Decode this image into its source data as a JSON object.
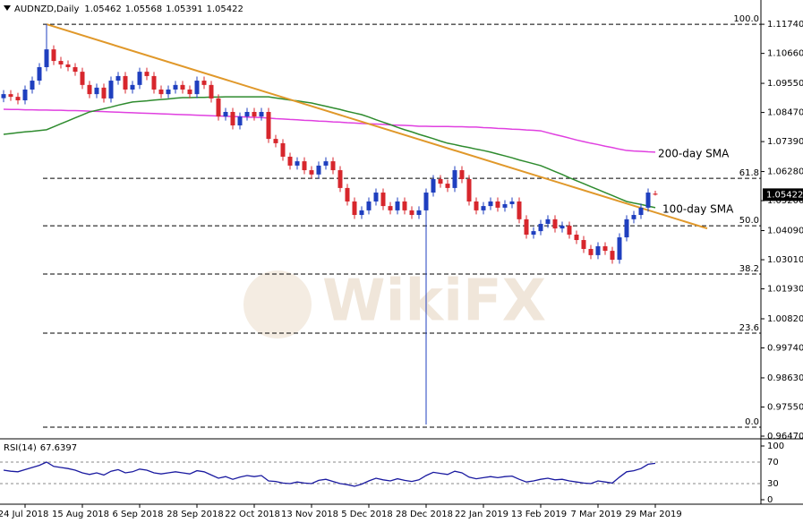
{
  "chart_data": {
    "type": "candlestick",
    "symbol": "AUDNZD,Daily",
    "ohlc_readout": {
      "open": 1.05462,
      "high": 1.05568,
      "low": 1.05391,
      "close": 1.05422
    },
    "watermark": "WikiFX",
    "categories": [
      null,
      null,
      null,
      "24 Jul 2018",
      null,
      null,
      null,
      null,
      null,
      null,
      null,
      "15 Aug 2018",
      null,
      null,
      null,
      null,
      null,
      null,
      null,
      "6 Sep 2018",
      null,
      null,
      null,
      null,
      null,
      null,
      null,
      "28 Sep 2018",
      null,
      null,
      null,
      null,
      null,
      null,
      null,
      "22 Oct 2018",
      null,
      null,
      null,
      null,
      null,
      null,
      null,
      "13 Nov 2018",
      null,
      null,
      null,
      null,
      null,
      null,
      null,
      "5 Dec 2018",
      null,
      null,
      null,
      null,
      null,
      null,
      null,
      "28 Dec 2018",
      null,
      null,
      null,
      null,
      null,
      null,
      null,
      "22 Jan 2019",
      null,
      null,
      null,
      null,
      null,
      null,
      null,
      "13 Feb 2019",
      null,
      null,
      null,
      null,
      null,
      null,
      null,
      "7 Mar 2019",
      null,
      null,
      null,
      null,
      null,
      null,
      null,
      "29 Mar 2019"
    ],
    "open": [
      1.09,
      1.0915,
      1.0905,
      1.0892,
      1.0932,
      1.0965,
      1.1015,
      1.1081,
      1.1038,
      1.1025,
      1.1015,
      1.0998,
      1.0949,
      1.0915,
      1.0939,
      1.0899,
      1.0965,
      1.0982,
      1.0932,
      1.0949,
      1.0998,
      1.0982,
      1.0932,
      1.0915,
      1.0932,
      1.0949,
      1.0932,
      1.0915,
      1.0965,
      1.0949,
      1.0899,
      1.0832,
      1.0849,
      1.0799,
      1.0832,
      1.0849,
      1.0832,
      1.0849,
      1.0749,
      1.0733,
      1.0683,
      1.065,
      1.0666,
      1.0633,
      1.0617,
      1.065,
      1.0666,
      1.0633,
      1.0567,
      1.0517,
      1.0467,
      1.0484,
      1.0517,
      1.055,
      1.05,
      1.0484,
      1.0517,
      1.0484,
      1.0467,
      1.0484,
      1.055,
      1.06,
      1.0583,
      1.0567,
      1.0633,
      1.06,
      1.0517,
      1.0484,
      1.05,
      1.0517,
      1.0494,
      1.0507,
      1.0517,
      1.0451,
      1.0394,
      1.0407,
      1.0434,
      1.0451,
      1.0417,
      1.0427,
      1.0394,
      1.0374,
      1.0341,
      1.0318,
      1.0351,
      1.0334,
      1.0301,
      1.0384,
      1.0451,
      1.0467,
      1.0494,
      1.0546
    ],
    "high": [
      1.093,
      1.093,
      1.092,
      1.0947,
      1.098,
      1.103,
      1.1174,
      1.1096,
      1.1053,
      1.104,
      1.103,
      1.1013,
      1.0964,
      1.0954,
      1.0954,
      1.098,
      1.0997,
      1.0997,
      1.0964,
      1.1013,
      1.1013,
      1.0997,
      1.0947,
      1.0947,
      1.0964,
      1.0964,
      1.0947,
      1.098,
      1.098,
      1.0964,
      1.0914,
      1.0864,
      1.0864,
      1.0847,
      1.0864,
      1.0864,
      1.0864,
      1.0864,
      1.0764,
      1.0748,
      1.0698,
      1.0681,
      1.0681,
      1.0648,
      1.0665,
      1.0681,
      1.0681,
      1.0648,
      1.0582,
      1.0532,
      1.0499,
      1.0532,
      1.0565,
      1.0565,
      1.0515,
      1.0532,
      1.0532,
      1.0499,
      1.0499,
      1.0565,
      1.0615,
      1.0615,
      1.0598,
      1.0648,
      1.0648,
      1.0615,
      1.0532,
      1.0515,
      1.0532,
      1.0532,
      1.0522,
      1.0532,
      1.0532,
      1.0466,
      1.0422,
      1.0449,
      1.0466,
      1.0466,
      1.0442,
      1.0442,
      1.0409,
      1.0389,
      1.0356,
      1.0366,
      1.0366,
      1.0349,
      1.0399,
      1.0466,
      1.0482,
      1.0509,
      1.0565,
      1.05568
    ],
    "low": [
      1.0885,
      1.089,
      1.0877,
      1.0877,
      1.0917,
      1.095,
      1.1,
      1.1023,
      1.101,
      1.1,
      1.0983,
      1.0934,
      1.09,
      1.09,
      1.0884,
      1.0884,
      1.095,
      1.0917,
      1.0917,
      1.0934,
      1.0967,
      1.0917,
      1.09,
      1.09,
      1.0917,
      1.0917,
      1.09,
      1.09,
      1.0934,
      1.0884,
      1.0817,
      1.0817,
      1.0784,
      1.0784,
      1.0817,
      1.0817,
      1.0817,
      1.0734,
      1.0718,
      1.0668,
      1.0635,
      1.0635,
      1.0618,
      1.0602,
      1.0602,
      1.0635,
      1.0618,
      1.0552,
      1.0502,
      1.0452,
      1.0452,
      1.0469,
      1.0502,
      1.0485,
      1.0469,
      1.0469,
      1.0469,
      1.0452,
      1.0452,
      0.969,
      1.0535,
      1.0568,
      1.0552,
      1.0552,
      1.0585,
      1.0502,
      1.0469,
      1.0469,
      1.0485,
      1.0479,
      1.0479,
      1.0492,
      1.0436,
      1.0379,
      1.0379,
      1.0392,
      1.0419,
      1.0402,
      1.0402,
      1.0379,
      1.0359,
      1.0326,
      1.0303,
      1.0303,
      1.0319,
      1.0286,
      1.0286,
      1.0369,
      1.0436,
      1.0452,
      1.0479,
      1.05391
    ],
    "close": [
      1.0915,
      1.0905,
      1.0892,
      1.0932,
      1.0965,
      1.1015,
      1.1081,
      1.1038,
      1.1025,
      1.1015,
      1.0998,
      1.0949,
      1.0915,
      1.0939,
      1.0899,
      1.0965,
      1.0982,
      1.0932,
      1.0949,
      1.0998,
      1.0982,
      1.0932,
      1.0915,
      1.0932,
      1.0949,
      1.0932,
      1.0915,
      1.0965,
      1.0949,
      1.0899,
      1.0832,
      1.0849,
      1.0799,
      1.0832,
      1.0849,
      1.0832,
      1.0849,
      1.0749,
      1.0733,
      1.0683,
      1.065,
      1.0666,
      1.0633,
      1.0617,
      1.065,
      1.0666,
      1.0633,
      1.0567,
      1.0517,
      1.0467,
      1.0484,
      1.0517,
      1.055,
      1.05,
      1.0484,
      1.0517,
      1.0484,
      1.0467,
      1.0484,
      1.055,
      1.06,
      1.0583,
      1.0567,
      1.0633,
      1.06,
      1.0517,
      1.0484,
      1.05,
      1.0517,
      1.0494,
      1.0507,
      1.0517,
      1.0451,
      1.0394,
      1.0407,
      1.0434,
      1.0451,
      1.0417,
      1.0427,
      1.0394,
      1.0374,
      1.0341,
      1.0318,
      1.0351,
      1.0334,
      1.0301,
      1.0384,
      1.0451,
      1.0467,
      1.0494,
      1.055,
      1.05422
    ],
    "up_color": "#1f3fbf",
    "down_color": "#d7262c",
    "ylim": [
      0.9637,
      1.1264
    ],
    "yticks": [
      {
        "value": 1.1174,
        "label": "1.11740"
      },
      {
        "value": 1.1066,
        "label": "1.10660"
      },
      {
        "value": 1.0955,
        "label": "1.09550"
      },
      {
        "value": 1.0847,
        "label": "1.08470"
      },
      {
        "value": 1.0739,
        "label": "1.07390"
      },
      {
        "value": 1.0628,
        "label": "1.06280"
      },
      {
        "value": 1.052,
        "label": "1.05200"
      },
      {
        "value": 1.0409,
        "label": "1.04090"
      },
      {
        "value": 1.0301,
        "label": "1.03010"
      },
      {
        "value": 1.0193,
        "label": "1.01930"
      },
      {
        "value": 1.0082,
        "label": "1.00820"
      },
      {
        "value": 0.9974,
        "label": "0.99740"
      },
      {
        "value": 0.9863,
        "label": "0.98630"
      },
      {
        "value": 0.9755,
        "label": "0.97550"
      },
      {
        "value": 0.9647,
        "label": "0.96470"
      }
    ],
    "fib_levels": [
      {
        "value": 1.1174,
        "label": "100.0"
      },
      {
        "value": 1.0603,
        "label": "61.8"
      },
      {
        "value": 1.0427,
        "label": "50.0"
      },
      {
        "value": 1.0248,
        "label": "38.2"
      },
      {
        "value": 1.0029,
        "label": "23.6"
      },
      {
        "value": 0.968,
        "label": "0.0"
      }
    ],
    "series": [
      {
        "name": "200-day SMA",
        "color": "#e040e0",
        "values": [
          1.0859,
          1.0858,
          1.0858,
          1.0857,
          1.0857,
          1.0856,
          1.0856,
          1.0855,
          1.0855,
          1.0854,
          1.0854,
          1.0853,
          1.0852,
          1.0851,
          1.085,
          1.0849,
          1.0848,
          1.0847,
          1.0846,
          1.0845,
          1.0844,
          1.0843,
          1.0842,
          1.0841,
          1.084,
          1.0839,
          1.0838,
          1.0837,
          1.0836,
          1.0835,
          1.0834,
          1.0833,
          1.0832,
          1.0831,
          1.083,
          1.0829,
          1.0828,
          1.0826,
          1.0824,
          1.0823,
          1.0821,
          1.082,
          1.0818,
          1.0817,
          1.0815,
          1.0814,
          1.0812,
          1.0811,
          1.0809,
          1.0808,
          1.0806,
          1.0805,
          1.0804,
          1.0803,
          1.0801,
          1.08,
          1.0799,
          1.0798,
          1.0796,
          1.0796,
          1.0795,
          1.0795,
          1.0795,
          1.0794,
          1.0794,
          1.0793,
          1.0793,
          1.0791,
          1.079,
          1.0788,
          1.0787,
          1.0785,
          1.0784,
          1.0782,
          1.0781,
          1.0779,
          1.0772,
          1.0765,
          1.0759,
          1.0752,
          1.0745,
          1.0739,
          1.0733,
          1.0728,
          1.0722,
          1.0717,
          1.0711,
          1.0706,
          1.0704,
          1.0703,
          1.0701,
          1.07
        ]
      },
      {
        "name": "100-day SMA",
        "color": "#2e8b2e",
        "values": [
          1.0766,
          1.0769,
          1.0772,
          1.0775,
          1.0777,
          1.078,
          1.0783,
          1.0794,
          1.0805,
          1.0816,
          1.0827,
          1.0838,
          1.0849,
          1.0855,
          1.0861,
          1.0867,
          1.0874,
          1.088,
          1.0886,
          1.0888,
          1.089,
          1.0893,
          1.0895,
          1.0897,
          1.09,
          1.0902,
          1.0902,
          1.0903,
          1.0903,
          1.0904,
          1.0904,
          1.0905,
          1.0905,
          1.0905,
          1.0905,
          1.0905,
          1.0905,
          1.0905,
          1.0901,
          1.0897,
          1.0893,
          1.089,
          1.0886,
          1.0882,
          1.0876,
          1.087,
          1.0864,
          1.0858,
          1.0851,
          1.0845,
          1.0839,
          1.083,
          1.082,
          1.0811,
          1.0802,
          1.0792,
          1.0783,
          1.0775,
          1.0766,
          1.0758,
          1.075,
          1.0741,
          1.0733,
          1.0728,
          1.0722,
          1.0717,
          1.0711,
          1.0706,
          1.07,
          1.0693,
          1.0686,
          1.0679,
          1.0671,
          1.0664,
          1.0657,
          1.065,
          1.0639,
          1.0628,
          1.0617,
          1.0605,
          1.0594,
          1.0583,
          1.0572,
          1.0561,
          1.055,
          1.0539,
          1.0528,
          1.0517,
          1.0511,
          1.0506,
          1.05,
          1.0494
        ]
      }
    ],
    "trendline": {
      "color": "#e0982a",
      "x": [
        6,
        98.25
      ],
      "values": [
        1.1174,
        1.0417
      ]
    },
    "indicator": {
      "name": "RSI(14)",
      "value": 67.6397,
      "color": "#1a1aa0",
      "ylim": [
        0,
        100
      ],
      "yticks": [
        100,
        70,
        30,
        0
      ],
      "values": [
        55,
        53,
        52,
        56,
        60,
        64,
        70,
        62,
        60,
        58,
        55,
        50,
        47,
        50,
        46,
        53,
        56,
        50,
        52,
        57,
        55,
        50,
        48,
        50,
        52,
        50,
        48,
        54,
        52,
        46,
        40,
        43,
        38,
        42,
        45,
        43,
        45,
        35,
        34,
        31,
        30,
        33,
        31,
        30,
        36,
        38,
        34,
        30,
        28,
        25,
        29,
        35,
        40,
        37,
        35,
        39,
        36,
        34,
        37,
        45,
        51,
        49,
        47,
        53,
        50,
        42,
        39,
        41,
        43,
        41,
        43,
        44,
        38,
        33,
        35,
        38,
        40,
        37,
        38,
        35,
        33,
        31,
        30,
        35,
        33,
        31,
        42,
        52,
        54,
        58,
        66,
        67.6397
      ]
    }
  }
}
